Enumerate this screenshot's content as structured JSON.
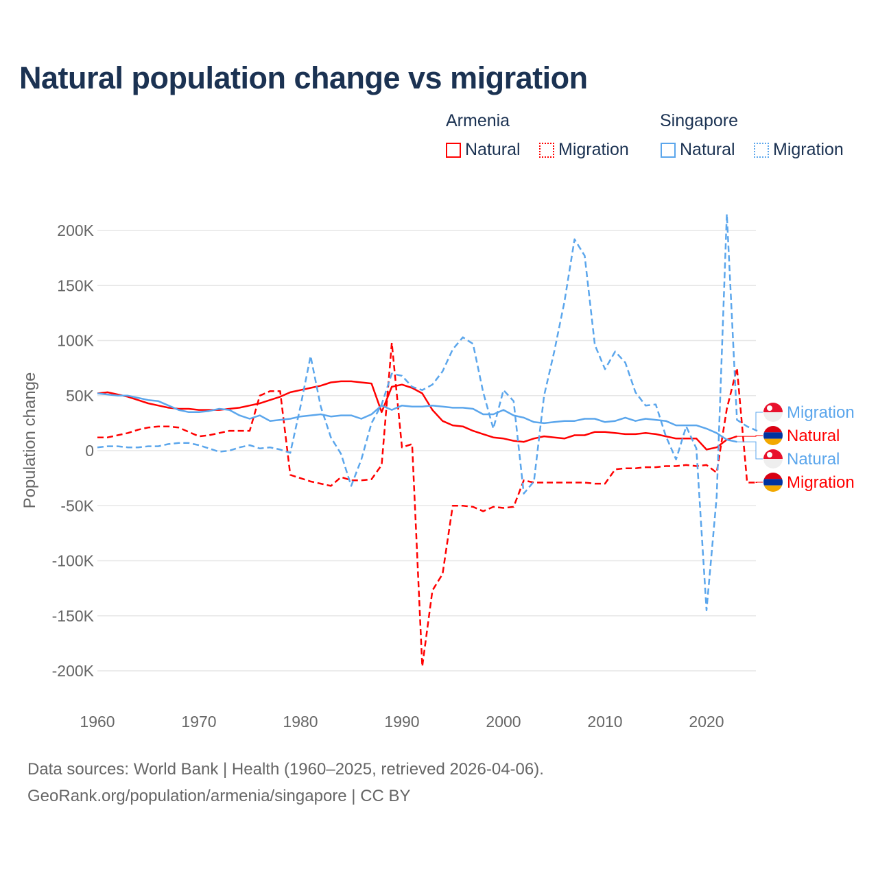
{
  "title": "Natural population change vs migration",
  "legend": {
    "groups": [
      {
        "name": "Armenia",
        "items": [
          "Natural",
          "Migration"
        ]
      },
      {
        "name": "Singapore",
        "items": [
          "Natural",
          "Migration"
        ]
      }
    ]
  },
  "footer": {
    "line1": "Data sources: World Bank | Health (1960–2025, retrieved 2026-04-06).",
    "line2": "GeoRank.org/population/armenia/singapore | CC BY"
  },
  "colors": {
    "armenia": "#ff0000",
    "singapore": "#5ba6ec",
    "title": "#1b3252"
  },
  "chart_data": {
    "type": "line",
    "title": "Natural population change vs migration",
    "xlabel": "",
    "ylabel": "Population change",
    "xlim": [
      1960,
      2025
    ],
    "ylim": [
      -225000,
      225000
    ],
    "xticks": [
      "1960",
      "1970",
      "1980",
      "1990",
      "2000",
      "2010",
      "2020"
    ],
    "yticks": [
      {
        "v": 200000,
        "label": "200K"
      },
      {
        "v": 150000,
        "label": "150K"
      },
      {
        "v": 100000,
        "label": "100K"
      },
      {
        "v": 50000,
        "label": "50K"
      },
      {
        "v": 0,
        "label": "0"
      },
      {
        "v": -50000,
        "label": "-50K"
      },
      {
        "v": -100000,
        "label": "-100K"
      },
      {
        "v": -150000,
        "label": "-150K"
      },
      {
        "v": -200000,
        "label": "-200K"
      }
    ],
    "grid": true,
    "series": [
      {
        "name": "Armenia Natural",
        "country": "Armenia",
        "label": "Natural",
        "color": "#ff0000",
        "dash": false,
        "start": 1960,
        "values_k": [
          52,
          53,
          51,
          49,
          46,
          43,
          41,
          39,
          38,
          38,
          37,
          37,
          37,
          38,
          39,
          41,
          43,
          46,
          49,
          53,
          55,
          57,
          59,
          62,
          63,
          63,
          62,
          61,
          35,
          58,
          60,
          57,
          52,
          37,
          27,
          23,
          22,
          18,
          15,
          12,
          11,
          9,
          8,
          11,
          13,
          12,
          11,
          14,
          14,
          17,
          17,
          16,
          15,
          15,
          16,
          15,
          13,
          11,
          11,
          11,
          1,
          3,
          10,
          13
        ]
      },
      {
        "name": "Armenia Migration",
        "country": "Armenia",
        "label": "Migration",
        "color": "#ff0000",
        "dash": true,
        "start": 1960,
        "values_k": [
          12,
          12,
          14,
          16,
          19,
          21,
          22,
          22,
          21,
          17,
          13,
          14,
          16,
          18,
          18,
          18,
          50,
          54,
          54,
          -22,
          -25,
          -28,
          -30,
          -32,
          -24,
          -27,
          -27,
          -26,
          -13,
          98,
          3,
          6,
          -196,
          -127,
          -112,
          -50,
          -50,
          -51,
          -55,
          -51,
          -52,
          -51,
          -27,
          -29,
          -29,
          -29,
          -29,
          -29,
          -29,
          -30,
          -30,
          -17,
          -16,
          -16,
          -15,
          -15,
          -14,
          -14,
          -13,
          -14,
          -13,
          -20,
          38,
          75,
          -29,
          -29
        ]
      },
      {
        "name": "Singapore Natural",
        "country": "Singapore",
        "label": "Natural",
        "color": "#5ba6ec",
        "dash": false,
        "start": 1960,
        "values_k": [
          52,
          51,
          50,
          50,
          48,
          46,
          45,
          41,
          37,
          35,
          35,
          36,
          38,
          37,
          32,
          29,
          32,
          27,
          28,
          29,
          31,
          32,
          33,
          31,
          32,
          32,
          29,
          33,
          41,
          37,
          41,
          40,
          40,
          41,
          40,
          39,
          39,
          38,
          33,
          33,
          37,
          32,
          30,
          26,
          25,
          26,
          27,
          27,
          29,
          29,
          26,
          27,
          30,
          27,
          29,
          28,
          27,
          23,
          23,
          23,
          20,
          16,
          10,
          8
        ]
      },
      {
        "name": "Singapore Migration",
        "country": "Singapore",
        "label": "Migration",
        "color": "#5ba6ec",
        "dash": true,
        "start": 1960,
        "values_k": [
          3,
          4,
          4,
          3,
          3,
          4,
          4,
          6,
          7,
          7,
          5,
          2,
          -1,
          0,
          3,
          5,
          2,
          3,
          1,
          -2,
          40,
          86,
          40,
          12,
          -3,
          -32,
          -8,
          25,
          42,
          70,
          68,
          58,
          55,
          60,
          72,
          92,
          103,
          97,
          53,
          20,
          55,
          45,
          -39,
          -28,
          50,
          90,
          135,
          192,
          177,
          96,
          74,
          90,
          80,
          53,
          41,
          42,
          13,
          -8,
          22,
          2,
          -145,
          -42,
          215,
          28,
          22,
          18
        ]
      }
    ],
    "end_labels": [
      {
        "text": "Migration",
        "series": 3,
        "flag": "singapore"
      },
      {
        "text": "Natural",
        "series": 0,
        "flag": "armenia"
      },
      {
        "text": "Natural",
        "series": 2,
        "flag": "singapore"
      },
      {
        "text": "Migration",
        "series": 1,
        "flag": "armenia"
      }
    ]
  }
}
